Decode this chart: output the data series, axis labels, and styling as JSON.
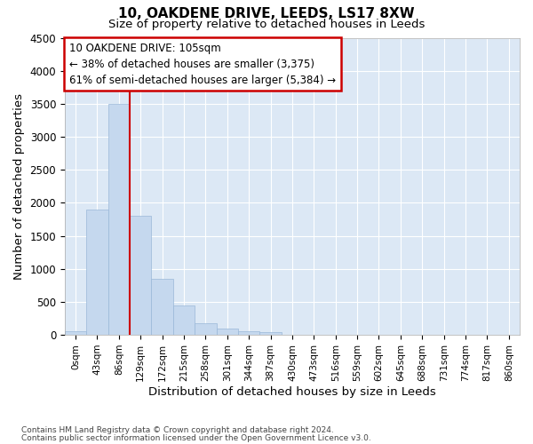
{
  "title1": "10, OAKDENE DRIVE, LEEDS, LS17 8XW",
  "title2": "Size of property relative to detached houses in Leeds",
  "xlabel": "Distribution of detached houses by size in Leeds",
  "ylabel": "Number of detached properties",
  "bar_color": "#c5d8ee",
  "bar_edge_color": "#9ab8d8",
  "plot_bg_color": "#dce8f5",
  "fig_bg_color": "#ffffff",
  "grid_color": "#ffffff",
  "categories": [
    "0sqm",
    "43sqm",
    "86sqm",
    "129sqm",
    "172sqm",
    "215sqm",
    "258sqm",
    "301sqm",
    "344sqm",
    "387sqm",
    "430sqm",
    "473sqm",
    "516sqm",
    "559sqm",
    "602sqm",
    "645sqm",
    "688sqm",
    "731sqm",
    "774sqm",
    "817sqm",
    "860sqm"
  ],
  "values": [
    50,
    1900,
    3500,
    1800,
    850,
    450,
    175,
    90,
    55,
    35,
    0,
    0,
    0,
    0,
    0,
    0,
    0,
    0,
    0,
    0,
    0
  ],
  "ylim_max": 4500,
  "ytick_step": 500,
  "vline_pos": 2.5,
  "vline_color": "#cc0000",
  "ann_title": "10 OAKDENE DRIVE: 105sqm",
  "ann_line1": "← 38% of detached houses are smaller (3,375)",
  "ann_line2": "61% of semi-detached houses are larger (5,384) →",
  "ann_box_fc": "#ffffff",
  "ann_box_ec": "#cc0000",
  "footer1": "Contains HM Land Registry data © Crown copyright and database right 2024.",
  "footer2": "Contains public sector information licensed under the Open Government Licence v3.0."
}
